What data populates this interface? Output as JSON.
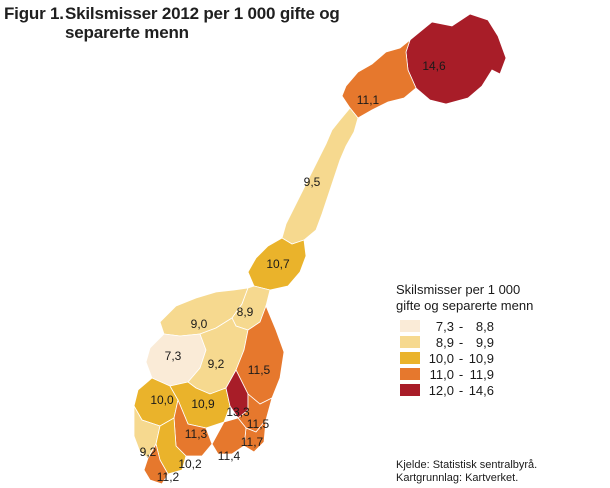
{
  "figure": {
    "prefix": "Figur 1.",
    "title_line1": "Skilsmisser 2012 per 1 000 gifte og",
    "title_line2": "separerte menn"
  },
  "legend": {
    "title_line1": "Skilsmisser per 1 000",
    "title_line2": "gifte og separerte menn",
    "classes": [
      {
        "lo": "7,3",
        "hi": "8,8",
        "color": "#faebd7"
      },
      {
        "lo": "8,9",
        "hi": "9,9",
        "color": "#f6d98f"
      },
      {
        "lo": "10,0",
        "hi": "10,9",
        "color": "#eab32b"
      },
      {
        "lo": "11,0",
        "hi": "11,9",
        "color": "#e6782d"
      },
      {
        "lo": "12,0",
        "hi": "14,6",
        "color": "#a81d28"
      }
    ]
  },
  "regions": [
    {
      "value": "14,6",
      "class": 4
    },
    {
      "value": "11,1",
      "class": 3
    },
    {
      "value": "9,5",
      "class": 1
    },
    {
      "value": "10,7",
      "class": 2
    },
    {
      "value": "9,0",
      "class": 1
    },
    {
      "value": "8,9",
      "class": 1
    },
    {
      "value": "7,3",
      "class": 0
    },
    {
      "value": "9,2",
      "class": 1
    },
    {
      "value": "11,5",
      "class": 3
    },
    {
      "value": "10,0",
      "class": 2
    },
    {
      "value": "10,9",
      "class": 2
    },
    {
      "value": "13,3",
      "class": 4
    },
    {
      "value": "11,5",
      "class": 3
    },
    {
      "value": "11,3",
      "class": 3
    },
    {
      "value": "11,7",
      "class": 3
    },
    {
      "value": "9,2",
      "class": 1
    },
    {
      "value": "10,2",
      "class": 2
    },
    {
      "value": "11,4",
      "class": 3
    },
    {
      "value": "11,2",
      "class": 3
    }
  ],
  "source": {
    "line1": "Kjelde: Statistisk sentralbyrå.",
    "line2": "Kartgrunnlag: Kartverket."
  }
}
